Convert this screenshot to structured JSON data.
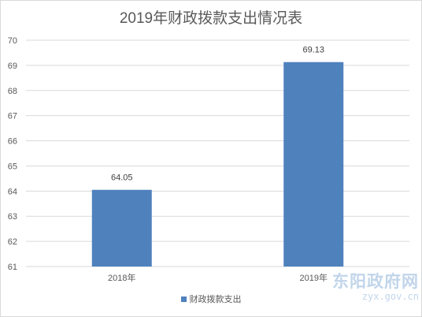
{
  "chart_data": {
    "type": "bar",
    "title": "2019年财政拨款支出情况表",
    "categories": [
      "2018年",
      "2019年"
    ],
    "series": [
      {
        "name": "财政拨款支出",
        "values": [
          64.05,
          69.13
        ],
        "color": "#4f81bd"
      }
    ],
    "data_labels": [
      "64.05",
      "69.13"
    ],
    "ylim": [
      61,
      70
    ],
    "y_ticks": [
      61,
      62,
      63,
      64,
      65,
      66,
      67,
      68,
      69,
      70
    ],
    "xlabel": "",
    "ylabel": "",
    "grid": true,
    "legend_position": "bottom"
  },
  "watermark": {
    "name": "东阳政府网",
    "domain": "zyx.gov.cn"
  },
  "colors": {
    "grid": "#d9d9d9",
    "text": "#595959",
    "bar": "#4f81bd"
  }
}
